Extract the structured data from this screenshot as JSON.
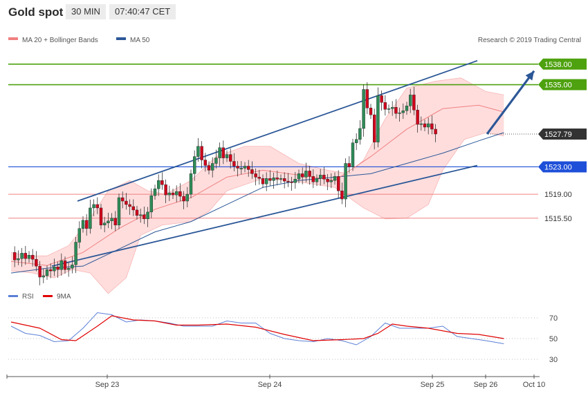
{
  "header": {
    "title": "Gold spot",
    "timeframe": "30 MIN",
    "time": "07:40:47 CET"
  },
  "legend": {
    "ma20_label": "MA 20 + Bollinger Bands",
    "ma50_label": "MA 50",
    "rsi_label": "RSI",
    "ma9_label": "9MA"
  },
  "copyright": "Research © 2019 Trading Central",
  "colors": {
    "ma20": "#f08080",
    "ma50": "#2b5797",
    "band_fill": "#ffd9d9",
    "bull": "#2e8b57",
    "bear": "#d0021b",
    "resistance": "#4ea10f",
    "support": "#1e4fd8",
    "minor_level": "#f08080",
    "channel": "#2b5797",
    "last_price": "#333333",
    "rsi": "#5b7fd6",
    "rsi_ma": "#e00000"
  },
  "chart_data": [
    {
      "type": "candlestick",
      "title": "",
      "ylim": [
        1506.5,
        1540.5
      ],
      "x_labels": [
        "Sep 23",
        "Sep 24",
        "Sep 25",
        "Sep 26",
        "Oct 10"
      ],
      "levels": [
        {
          "value": 1538.0,
          "label": "1538.00",
          "kind": "resistance"
        },
        {
          "value": 1535.0,
          "label": "1535.00",
          "kind": "resistance"
        },
        {
          "value": 1527.79,
          "label": "1527.79",
          "kind": "last"
        },
        {
          "value": 1523.0,
          "label": "1523.00",
          "kind": "support"
        },
        {
          "value": 1519.0,
          "label": "1519.00",
          "kind": "minor"
        },
        {
          "value": 1515.5,
          "label": "1515.50",
          "kind": "minor"
        }
      ],
      "channel": {
        "upper": [
          [
            0,
            1518.0
          ],
          [
            137,
            1538.5
          ]
        ],
        "lower": [
          [
            12,
            1508.5
          ],
          [
            137,
            1523.2
          ]
        ]
      },
      "projection": [
        [
          137,
          1527.79
        ],
        [
          152,
          1537.0
        ]
      ],
      "closes": [
        1510.5,
        1509.4,
        1509.6,
        1510.4,
        1509.6,
        1510.1,
        1509.5,
        1508.5,
        1506.9,
        1507.1,
        1508.0,
        1507.8,
        1508.4,
        1508.0,
        1509.3,
        1508.0,
        1508.2,
        1508.7,
        1512.0,
        1514.0,
        1515.2,
        1514.0,
        1517.0,
        1517.5,
        1517.0,
        1514.5,
        1514.8,
        1515.1,
        1515.5,
        1514.5,
        1518.5,
        1518.0,
        1517.5,
        1517.2,
        1516.7,
        1515.9,
        1516.0,
        1515.4,
        1516.4,
        1518.8,
        1519.8,
        1521.0,
        1520.4,
        1518.9,
        1519.2,
        1518.9,
        1519.4,
        1518.7,
        1518.0,
        1519.0,
        1522.0,
        1524.5,
        1526.0,
        1524.0,
        1523.2,
        1522.5,
        1523.5,
        1524.3,
        1525.8,
        1524.3,
        1524.8,
        1523.8,
        1523.1,
        1522.8,
        1522.8,
        1523.1,
        1522.6,
        1522.0,
        1521.5,
        1521.3,
        1520.5,
        1521.3,
        1521.0,
        1521.4,
        1521.2,
        1521.3,
        1520.9,
        1520.8,
        1520.7,
        1521.2,
        1522.0,
        1521.5,
        1522.4,
        1521.6,
        1520.8,
        1521.3,
        1521.8,
        1521.2,
        1520.8,
        1521.0,
        1521.6,
        1519.5,
        1518.3,
        1523.5,
        1523.0,
        1526.5,
        1527.0,
        1528.6,
        1534.3,
        1531.6,
        1530.6,
        1526.6,
        1533.4,
        1532.4,
        1531.4,
        1531.5,
        1531.7,
        1530.8,
        1530.9,
        1531.2,
        1531.9,
        1533.5,
        1531.3,
        1529.2,
        1529.3,
        1528.8,
        1529.3,
        1528.5,
        1527.79
      ],
      "ma20_points": [
        [
          0,
          1509.2
        ],
        [
          10,
          1508.6
        ],
        [
          20,
          1510.5
        ],
        [
          30,
          1514.0
        ],
        [
          40,
          1516.8
        ],
        [
          50,
          1518.5
        ],
        [
          60,
          1521.5
        ],
        [
          70,
          1522.5
        ],
        [
          80,
          1521.8
        ],
        [
          90,
          1521.0
        ],
        [
          100,
          1524.5
        ],
        [
          110,
          1528.5
        ],
        [
          120,
          1531.5
        ],
        [
          130,
          1532.0
        ],
        [
          137,
          1531.0
        ]
      ],
      "bb_upper": [
        [
          0,
          1510.5
        ],
        [
          5,
          1510.0
        ],
        [
          10,
          1510.0
        ],
        [
          16,
          1511.5
        ],
        [
          22,
          1515.5
        ],
        [
          27,
          1519.5
        ],
        [
          33,
          1521.0
        ],
        [
          38,
          1519.5
        ],
        [
          43,
          1519.0
        ],
        [
          50,
          1521.0
        ],
        [
          57,
          1524.5
        ],
        [
          65,
          1526.0
        ],
        [
          72,
          1526.0
        ],
        [
          80,
          1523.5
        ],
        [
          88,
          1522.5
        ],
        [
          94,
          1522.0
        ],
        [
          98,
          1524.0
        ],
        [
          104,
          1530.0
        ],
        [
          110,
          1534.5
        ],
        [
          118,
          1535.5
        ],
        [
          125,
          1536.0
        ],
        [
          132,
          1534.0
        ],
        [
          137,
          1533.5
        ]
      ],
      "bb_lower": [
        [
          0,
          1507.8
        ],
        [
          6,
          1507.5
        ],
        [
          12,
          1506.8
        ],
        [
          17,
          1508.0
        ],
        [
          22,
          1507.5
        ],
        [
          27,
          1504.5
        ],
        [
          32,
          1506.8
        ],
        [
          36,
          1513.0
        ],
        [
          42,
          1514.5
        ],
        [
          50,
          1515.0
        ],
        [
          55,
          1516.5
        ],
        [
          60,
          1519.5
        ],
        [
          70,
          1521.3
        ],
        [
          80,
          1520.8
        ],
        [
          90,
          1520.0
        ],
        [
          98,
          1517.0
        ],
        [
          104,
          1515.4
        ],
        [
          110,
          1515.5
        ],
        [
          116,
          1517.5
        ],
        [
          120,
          1522.5
        ],
        [
          126,
          1527.0
        ],
        [
          132,
          1528.0
        ],
        [
          137,
          1527.5
        ]
      ],
      "ma50_points": [
        [
          0,
          1507.5
        ],
        [
          10,
          1508.2
        ],
        [
          20,
          1508.5
        ],
        [
          30,
          1511.0
        ],
        [
          40,
          1513.5
        ],
        [
          50,
          1515.0
        ],
        [
          60,
          1517.5
        ],
        [
          70,
          1520.0
        ],
        [
          80,
          1521.0
        ],
        [
          90,
          1521.5
        ],
        [
          100,
          1522.0
        ],
        [
          110,
          1523.5
        ],
        [
          120,
          1525.0
        ],
        [
          130,
          1526.8
        ],
        [
          137,
          1528.0
        ]
      ]
    },
    {
      "type": "line",
      "title": "RSI",
      "ylim": [
        20,
        80
      ],
      "yticks": [
        30,
        50,
        70
      ],
      "series": [
        {
          "name": "RSI",
          "points": [
            [
              0,
              62
            ],
            [
              4,
              55
            ],
            [
              8,
              53
            ],
            [
              12,
              47
            ],
            [
              16,
              48
            ],
            [
              20,
              60
            ],
            [
              24,
              75
            ],
            [
              28,
              73
            ],
            [
              32,
              66
            ],
            [
              36,
              68
            ],
            [
              40,
              67
            ],
            [
              44,
              65
            ],
            [
              48,
              62
            ],
            [
              52,
              62
            ],
            [
              56,
              62
            ],
            [
              60,
              67
            ],
            [
              64,
              65
            ],
            [
              68,
              65
            ],
            [
              72,
              55
            ],
            [
              76,
              50
            ],
            [
              80,
              48
            ],
            [
              84,
              47
            ],
            [
              88,
              50
            ],
            [
              92,
              48
            ],
            [
              96,
              44
            ],
            [
              100,
              52
            ],
            [
              104,
              65
            ],
            [
              108,
              60
            ],
            [
              112,
              60
            ],
            [
              116,
              60
            ],
            [
              120,
              62
            ],
            [
              124,
              52
            ],
            [
              128,
              50
            ],
            [
              132,
              48
            ],
            [
              137,
              45
            ]
          ]
        },
        {
          "name": "9MA",
          "points": [
            [
              0,
              66
            ],
            [
              8,
              60
            ],
            [
              14,
              49
            ],
            [
              18,
              48
            ],
            [
              24,
              62
            ],
            [
              28,
              72
            ],
            [
              34,
              68
            ],
            [
              40,
              67
            ],
            [
              46,
              63
            ],
            [
              52,
              63
            ],
            [
              60,
              64
            ],
            [
              68,
              61
            ],
            [
              76,
              54
            ],
            [
              84,
              48
            ],
            [
              92,
              49
            ],
            [
              98,
              50
            ],
            [
              102,
              55
            ],
            [
              106,
              64
            ],
            [
              110,
              62
            ],
            [
              116,
              60
            ],
            [
              124,
              55
            ],
            [
              130,
              54
            ],
            [
              137,
              50
            ]
          ]
        }
      ]
    }
  ]
}
